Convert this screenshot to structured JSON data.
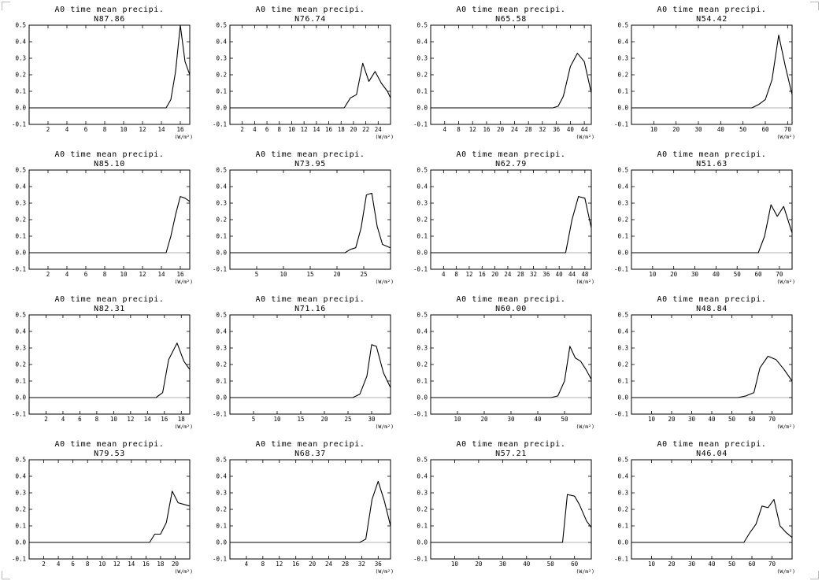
{
  "colors": {
    "line": "#000000",
    "zero_line": "#999999",
    "frame": "#000000"
  },
  "chart_data": [
    {
      "type": "line",
      "title": "A0 time mean precipi.",
      "subtitle": "N87.86",
      "unit_label": "(W/m²)",
      "xlim": [
        0,
        17
      ],
      "ylim": [
        -0.1,
        0.5
      ],
      "xticks": [
        2,
        4,
        6,
        8,
        10,
        12,
        14,
        16
      ],
      "yticks": [
        -0.1,
        0.0,
        0.1,
        0.2,
        0.3,
        0.4,
        0.5
      ],
      "zero_line": 0,
      "series": [
        {
          "x": [
            0,
            1,
            2,
            3,
            4,
            5,
            6,
            7,
            8,
            9,
            10,
            11,
            12,
            13,
            14,
            14.5,
            15,
            15.5,
            16,
            16.5,
            17
          ],
          "y": [
            0,
            0,
            0,
            0,
            0,
            0,
            0,
            0,
            0,
            0,
            0,
            0,
            0,
            0,
            0,
            0,
            0.05,
            0.22,
            0.5,
            0.28,
            0.2
          ]
        }
      ]
    },
    {
      "type": "line",
      "title": "A0 time mean precipi.",
      "subtitle": "N76.74",
      "unit_label": "(W/m²)",
      "xlim": [
        0,
        26
      ],
      "ylim": [
        -0.1,
        0.5
      ],
      "xticks": [
        2,
        4,
        6,
        8,
        10,
        12,
        14,
        16,
        18,
        20,
        22,
        24
      ],
      "yticks": [
        -0.1,
        0.0,
        0.1,
        0.2,
        0.3,
        0.4,
        0.5
      ],
      "zero_line": 0,
      "series": [
        {
          "x": [
            0,
            2,
            4,
            6,
            8,
            10,
            12,
            14,
            16,
            18,
            18.5,
            19.5,
            20.5,
            21.5,
            22.5,
            23.5,
            24.5,
            25.5,
            26
          ],
          "y": [
            0,
            0,
            0,
            0,
            0,
            0,
            0,
            0,
            0,
            0,
            0,
            0.06,
            0.08,
            0.27,
            0.16,
            0.22,
            0.15,
            0.1,
            0.06
          ]
        }
      ]
    },
    {
      "type": "line",
      "title": "A0 time mean precipi.",
      "subtitle": "N65.58",
      "unit_label": "(W/m²)",
      "xlim": [
        0,
        46
      ],
      "ylim": [
        -0.1,
        0.5
      ],
      "xticks": [
        4,
        8,
        12,
        16,
        20,
        24,
        28,
        32,
        36,
        40,
        44
      ],
      "yticks": [
        -0.1,
        0.0,
        0.1,
        0.2,
        0.3,
        0.4,
        0.5
      ],
      "zero_line": 0,
      "series": [
        {
          "x": [
            0,
            4,
            8,
            12,
            16,
            20,
            24,
            28,
            32,
            35,
            36.5,
            38,
            40,
            42,
            44,
            46
          ],
          "y": [
            0,
            0,
            0,
            0,
            0,
            0,
            0,
            0,
            0,
            0,
            0.01,
            0.07,
            0.25,
            0.33,
            0.28,
            0.09
          ]
        }
      ]
    },
    {
      "type": "line",
      "title": "A0 time mean precipi.",
      "subtitle": "N54.42",
      "unit_label": "(W/m²)",
      "xlim": [
        0,
        72
      ],
      "ylim": [
        -0.1,
        0.5
      ],
      "xticks": [
        10,
        20,
        30,
        40,
        50,
        60,
        70
      ],
      "yticks": [
        -0.1,
        0.0,
        0.1,
        0.2,
        0.3,
        0.4,
        0.5
      ],
      "zero_line": 0,
      "series": [
        {
          "x": [
            0,
            10,
            20,
            30,
            40,
            50,
            54,
            57,
            60,
            63,
            66,
            69,
            72
          ],
          "y": [
            0,
            0,
            0,
            0,
            0,
            0,
            0,
            0.02,
            0.05,
            0.17,
            0.44,
            0.25,
            0.08
          ]
        }
      ]
    },
    {
      "type": "line",
      "title": "A0 time mean precipi.",
      "subtitle": "N85.10",
      "unit_label": "(W/m²)",
      "xlim": [
        0,
        17
      ],
      "ylim": [
        -0.1,
        0.5
      ],
      "xticks": [
        2,
        4,
        6,
        8,
        10,
        12,
        14,
        16
      ],
      "yticks": [
        -0.1,
        0.0,
        0.1,
        0.2,
        0.3,
        0.4,
        0.5
      ],
      "zero_line": 0,
      "series": [
        {
          "x": [
            0,
            2,
            4,
            6,
            8,
            10,
            12,
            14,
            14.5,
            15,
            15.5,
            16,
            16.5,
            17
          ],
          "y": [
            0,
            0,
            0,
            0,
            0,
            0,
            0,
            0,
            0,
            0.1,
            0.23,
            0.34,
            0.33,
            0.31
          ]
        }
      ]
    },
    {
      "type": "line",
      "title": "A0 time mean precipi.",
      "subtitle": "N73.95",
      "unit_label": "(W/m²)",
      "xlim": [
        0,
        30
      ],
      "ylim": [
        -0.1,
        0.5
      ],
      "xticks": [
        5,
        10,
        15,
        20,
        25
      ],
      "yticks": [
        -0.1,
        0.0,
        0.1,
        0.2,
        0.3,
        0.4,
        0.5
      ],
      "zero_line": 0,
      "series": [
        {
          "x": [
            0,
            5,
            10,
            15,
            20,
            21.5,
            22.5,
            23.5,
            24.5,
            25.5,
            26.5,
            27.5,
            28.5,
            30
          ],
          "y": [
            0,
            0,
            0,
            0,
            0,
            0,
            0.02,
            0.03,
            0.15,
            0.35,
            0.36,
            0.16,
            0.05,
            0.03
          ]
        }
      ]
    },
    {
      "type": "line",
      "title": "A0 time mean precipi.",
      "subtitle": "N62.79",
      "unit_label": "(W/m²)",
      "xlim": [
        0,
        50
      ],
      "ylim": [
        -0.1,
        0.5
      ],
      "xticks": [
        4,
        8,
        12,
        16,
        20,
        24,
        28,
        32,
        36,
        40,
        44,
        48
      ],
      "yticks": [
        -0.1,
        0.0,
        0.1,
        0.2,
        0.3,
        0.4,
        0.5
      ],
      "zero_line": 0,
      "series": [
        {
          "x": [
            0,
            8,
            16,
            24,
            32,
            40,
            42,
            44,
            46,
            48,
            50
          ],
          "y": [
            0,
            0,
            0,
            0,
            0,
            0,
            0,
            0.2,
            0.34,
            0.33,
            0.15
          ]
        }
      ]
    },
    {
      "type": "line",
      "title": "A0 time mean precipi.",
      "subtitle": "N51.63",
      "unit_label": "(W/m²)",
      "xlim": [
        0,
        76
      ],
      "ylim": [
        -0.1,
        0.5
      ],
      "xticks": [
        10,
        20,
        30,
        40,
        50,
        60,
        70
      ],
      "yticks": [
        -0.1,
        0.0,
        0.1,
        0.2,
        0.3,
        0.4,
        0.5
      ],
      "zero_line": 0,
      "series": [
        {
          "x": [
            0,
            10,
            20,
            30,
            40,
            50,
            60,
            63,
            66,
            69,
            72,
            76
          ],
          "y": [
            0,
            0,
            0,
            0,
            0,
            0,
            0,
            0.1,
            0.29,
            0.22,
            0.28,
            0.12
          ]
        }
      ]
    },
    {
      "type": "line",
      "title": "A0 time mean precipi.",
      "subtitle": "N82.31",
      "unit_label": "(W/m²)",
      "xlim": [
        0,
        19
      ],
      "ylim": [
        -0.1,
        0.5
      ],
      "xticks": [
        2,
        4,
        6,
        8,
        10,
        12,
        14,
        16,
        18
      ],
      "yticks": [
        -0.1,
        0.0,
        0.1,
        0.2,
        0.3,
        0.4,
        0.5
      ],
      "zero_line": 0,
      "series": [
        {
          "x": [
            0,
            2,
            4,
            6,
            8,
            10,
            12,
            14,
            15,
            15.8,
            16.5,
            17.5,
            18.3,
            19
          ],
          "y": [
            0,
            0,
            0,
            0,
            0,
            0,
            0,
            0,
            0,
            0.03,
            0.23,
            0.33,
            0.22,
            0.17
          ]
        }
      ]
    },
    {
      "type": "line",
      "title": "A0 time mean precipi.",
      "subtitle": "N71.16",
      "unit_label": "(W/m²)",
      "xlim": [
        0,
        34
      ],
      "ylim": [
        -0.1,
        0.5
      ],
      "xticks": [
        5,
        10,
        15,
        20,
        25,
        30
      ],
      "yticks": [
        -0.1,
        0.0,
        0.1,
        0.2,
        0.3,
        0.4,
        0.5
      ],
      "zero_line": 0,
      "series": [
        {
          "x": [
            0,
            5,
            10,
            15,
            20,
            25,
            26,
            27.5,
            29,
            30,
            31,
            32.5,
            34
          ],
          "y": [
            0,
            0,
            0,
            0,
            0,
            0,
            0,
            0.02,
            0.13,
            0.32,
            0.31,
            0.15,
            0.06
          ]
        }
      ]
    },
    {
      "type": "line",
      "title": "A0 time mean precipi.",
      "subtitle": "N60.00",
      "unit_label": "(W/m²)",
      "xlim": [
        0,
        60
      ],
      "ylim": [
        -0.1,
        0.5
      ],
      "xticks": [
        10,
        20,
        30,
        40,
        50
      ],
      "yticks": [
        -0.1,
        0.0,
        0.1,
        0.2,
        0.3,
        0.4,
        0.5
      ],
      "zero_line": 0,
      "series": [
        {
          "x": [
            0,
            10,
            20,
            30,
            40,
            45,
            47.5,
            50,
            52,
            54,
            56,
            58,
            60
          ],
          "y": [
            0,
            0,
            0,
            0,
            0,
            0,
            0.01,
            0.1,
            0.31,
            0.24,
            0.22,
            0.17,
            0.11
          ]
        }
      ]
    },
    {
      "type": "line",
      "title": "A0 time mean precipi.",
      "subtitle": "N48.84",
      "unit_label": "(W/m²)",
      "xlim": [
        0,
        80
      ],
      "ylim": [
        -0.1,
        0.5
      ],
      "xticks": [
        10,
        20,
        30,
        40,
        50,
        60,
        70
      ],
      "yticks": [
        -0.1,
        0.0,
        0.1,
        0.2,
        0.3,
        0.4,
        0.5
      ],
      "zero_line": 0,
      "series": [
        {
          "x": [
            0,
            10,
            20,
            30,
            40,
            50,
            53,
            57,
            61,
            64,
            68,
            72,
            76,
            80
          ],
          "y": [
            0,
            0,
            0,
            0,
            0,
            0,
            0,
            0.01,
            0.03,
            0.18,
            0.25,
            0.23,
            0.17,
            0.1
          ]
        }
      ]
    },
    {
      "type": "line",
      "title": "A0 time mean precipi.",
      "subtitle": "N79.53",
      "unit_label": "(W/m²)",
      "xlim": [
        0,
        22
      ],
      "ylim": [
        -0.1,
        0.5
      ],
      "xticks": [
        2,
        4,
        6,
        8,
        10,
        12,
        14,
        16,
        18,
        20
      ],
      "yticks": [
        -0.1,
        0.0,
        0.1,
        0.2,
        0.3,
        0.4,
        0.5
      ],
      "zero_line": 0,
      "series": [
        {
          "x": [
            0,
            2,
            4,
            6,
            8,
            10,
            12,
            14,
            16,
            16.5,
            17.2,
            18,
            18.8,
            19.6,
            20.4,
            21.2,
            22
          ],
          "y": [
            0,
            0,
            0,
            0,
            0,
            0,
            0,
            0,
            0,
            0,
            0.05,
            0.05,
            0.12,
            0.31,
            0.24,
            0.23,
            0.22
          ]
        }
      ]
    },
    {
      "type": "line",
      "title": "A0 time mean precipi.",
      "subtitle": "N68.37",
      "unit_label": "(W/m²)",
      "xlim": [
        0,
        39
      ],
      "ylim": [
        -0.1,
        0.5
      ],
      "xticks": [
        4,
        8,
        12,
        16,
        20,
        24,
        28,
        32,
        36
      ],
      "yticks": [
        -0.1,
        0.0,
        0.1,
        0.2,
        0.3,
        0.4,
        0.5
      ],
      "zero_line": 0,
      "series": [
        {
          "x": [
            0,
            8,
            16,
            24,
            30,
            31.5,
            33,
            34.5,
            36,
            37.5,
            39
          ],
          "y": [
            0,
            0,
            0,
            0,
            0,
            0,
            0.02,
            0.26,
            0.37,
            0.25,
            0.1
          ]
        }
      ]
    },
    {
      "type": "line",
      "title": "A0 time mean precipi.",
      "subtitle": "N57.21",
      "unit_label": "(W/m²)",
      "xlim": [
        0,
        67
      ],
      "ylim": [
        -0.1,
        0.5
      ],
      "xticks": [
        10,
        20,
        30,
        40,
        50,
        60
      ],
      "yticks": [
        -0.1,
        0.0,
        0.1,
        0.2,
        0.3,
        0.4,
        0.5
      ],
      "zero_line": 0,
      "series": [
        {
          "x": [
            0,
            10,
            20,
            30,
            40,
            50,
            55,
            57,
            60,
            62,
            65,
            67
          ],
          "y": [
            0,
            0,
            0,
            0,
            0,
            0,
            0,
            0.29,
            0.28,
            0.23,
            0.13,
            0.09
          ]
        }
      ]
    },
    {
      "type": "line",
      "title": "A0 time mean precipi.",
      "subtitle": "N46.04",
      "unit_label": "(W/m²)",
      "xlim": [
        0,
        80
      ],
      "ylim": [
        -0.1,
        0.5
      ],
      "xticks": [
        10,
        20,
        30,
        40,
        50,
        60,
        70
      ],
      "yticks": [
        -0.1,
        0.0,
        0.1,
        0.2,
        0.3,
        0.4,
        0.5
      ],
      "zero_line": 0,
      "series": [
        {
          "x": [
            0,
            10,
            20,
            30,
            40,
            50,
            56,
            59,
            62,
            65,
            68,
            71,
            74,
            77,
            80
          ],
          "y": [
            0,
            0,
            0,
            0,
            0,
            0,
            0,
            0.06,
            0.11,
            0.22,
            0.21,
            0.26,
            0.1,
            0.06,
            0.03
          ]
        }
      ]
    }
  ]
}
